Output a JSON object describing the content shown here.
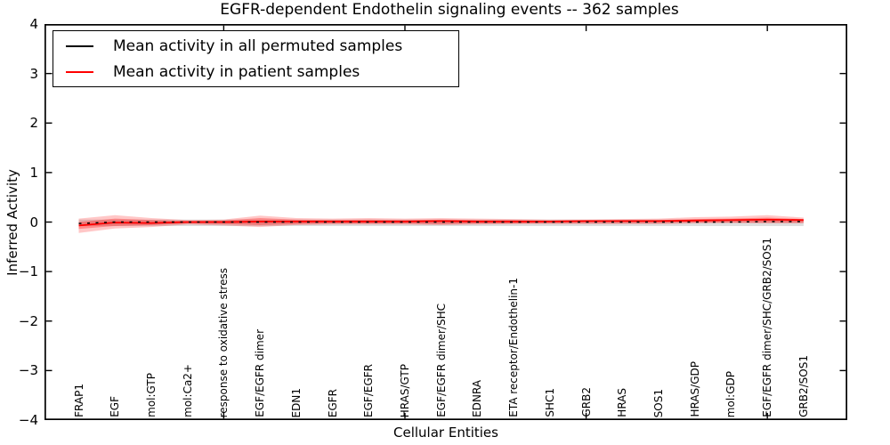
{
  "title": "EGFR-dependent Endothelin signaling events -- 362 samples",
  "legend": {
    "items": [
      {
        "label": "Mean activity in all permuted samples",
        "color": "#000000"
      },
      {
        "label": "Mean activity in patient samples",
        "color": "#ff0000"
      }
    ]
  },
  "axes": {
    "ylabel": "Inferred Activity",
    "xlabel": "Cellular Entities"
  },
  "chart_data": {
    "type": "line",
    "title": "EGFR-dependent Endothelin signaling events -- 362 samples",
    "xlabel": "Cellular Entities",
    "ylabel": "Inferred Activity",
    "ylim": [
      -4,
      4
    ],
    "yticks": [
      4,
      3,
      2,
      1,
      0,
      -1,
      -2,
      -3,
      -4
    ],
    "xticks_positions": [
      5,
      10,
      15,
      20
    ],
    "grid": false,
    "legend_position": "upper left",
    "categories": [
      "FRAP1",
      "EGF",
      "mol:GTP",
      "mol:Ca2+",
      "response to oxidative stress",
      "EGF/EGFR dimer",
      "EDN1",
      "EGFR",
      "EGF/EGFR",
      "HRAS/GTP",
      "EGF/EGFR dimer/SHC",
      "EDNRA",
      "ETA receptor/Endothelin-1",
      "SHC1",
      "GRB2",
      "HRAS",
      "SOS1",
      "HRAS/GDP",
      "mol:GDP",
      "EGF/EGFR dimer/SHC/GRB2/SOS1",
      "GRB2/SOS1"
    ],
    "series": [
      {
        "name": "Mean activity in all permuted samples",
        "color": "#000000",
        "style": "dashed",
        "values": [
          -0.03,
          0,
          0,
          0,
          0,
          0,
          0,
          0,
          0,
          0,
          0,
          0,
          0,
          0,
          0,
          0,
          0,
          0,
          0,
          0.01,
          0.01
        ]
      },
      {
        "name": "Mean activity in patient samples",
        "color": "#ff0000",
        "style": "solid",
        "values": [
          -0.07,
          -0.01,
          -0.02,
          0,
          0,
          0.01,
          0.01,
          0.01,
          0.01,
          0.01,
          0.02,
          0.01,
          0.01,
          0.01,
          0.02,
          0.02,
          0.02,
          0.03,
          0.04,
          0.05,
          0.04
        ]
      }
    ],
    "bands": [
      {
        "name": "permuted-samples-std-band",
        "color": "#c8c8c8",
        "opacity": 0.6,
        "upper": [
          0.05,
          0.05,
          0.05,
          0.05,
          0.05,
          0.05,
          0.05,
          0.05,
          0.05,
          0.05,
          0.05,
          0.05,
          0.05,
          0.05,
          0.05,
          0.05,
          0.05,
          0.05,
          0.05,
          0.05,
          0.05
        ],
        "lower": [
          -0.08,
          -0.08,
          -0.08,
          -0.08,
          -0.08,
          -0.08,
          -0.08,
          -0.08,
          -0.08,
          -0.08,
          -0.08,
          -0.08,
          -0.08,
          -0.08,
          -0.08,
          -0.08,
          -0.08,
          -0.08,
          -0.08,
          -0.08,
          -0.08
        ]
      },
      {
        "name": "patient-samples-std-band-outer",
        "color": "#ff0000",
        "opacity": 0.22,
        "upper": [
          0.07,
          0.14,
          0.08,
          0.04,
          0.05,
          0.13,
          0.08,
          0.07,
          0.08,
          0.07,
          0.08,
          0.07,
          0.06,
          0.05,
          0.05,
          0.06,
          0.07,
          0.1,
          0.11,
          0.14,
          0.09
        ],
        "lower": [
          -0.22,
          -0.13,
          -0.1,
          -0.05,
          -0.07,
          -0.1,
          -0.06,
          -0.05,
          -0.05,
          -0.05,
          -0.06,
          -0.05,
          -0.04,
          -0.04,
          -0.04,
          -0.04,
          -0.04,
          -0.03,
          -0.02,
          -0.03,
          -0.03
        ]
      },
      {
        "name": "patient-samples-std-band-inner",
        "color": "#ff0000",
        "opacity": 0.3,
        "upper": [
          0.0,
          0.07,
          0.04,
          0.02,
          0.03,
          0.08,
          0.05,
          0.04,
          0.05,
          0.04,
          0.05,
          0.04,
          0.04,
          0.03,
          0.03,
          0.04,
          0.04,
          0.06,
          0.07,
          0.09,
          0.06
        ],
        "lower": [
          -0.14,
          -0.08,
          -0.06,
          -0.03,
          -0.04,
          -0.06,
          -0.04,
          -0.03,
          -0.03,
          -0.03,
          -0.04,
          -0.03,
          -0.03,
          -0.02,
          -0.02,
          -0.02,
          -0.02,
          -0.01,
          -0.01,
          -0.01,
          -0.01
        ]
      }
    ]
  }
}
